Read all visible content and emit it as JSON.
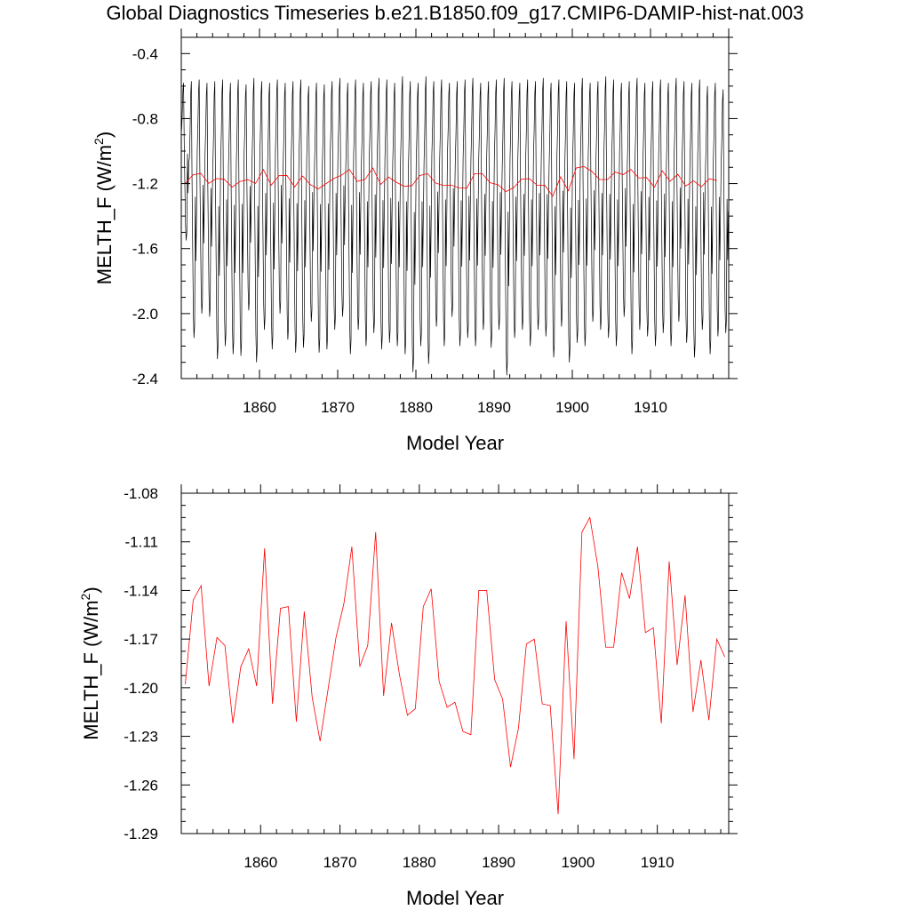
{
  "title": "Global Diagnostics Timeseries b.e21.B1850.f09_g17.CMIP6-DAMIP-hist-nat.003",
  "colors": {
    "monthly": "#000000",
    "annual": "#ff0000",
    "frame": "#000000"
  },
  "chart_data": [
    {
      "type": "line",
      "xlabel": "Model Year",
      "ylabel": "MELTH_F (W/m²)",
      "ylabel_main": "MELTH_F (W/m",
      "ylabel_sup": "2",
      "ylabel_end": ")",
      "xlim": [
        1850,
        1920
      ],
      "ylim": [
        -2.4,
        -0.3
      ],
      "xticks": [
        1860,
        1870,
        1880,
        1890,
        1900,
        1910
      ],
      "xtick_labels": [
        "1860",
        "1870",
        "1880",
        "1890",
        "1900",
        "1910"
      ],
      "yticks": [
        -2.4,
        -2.0,
        -1.6,
        -1.2,
        -0.8,
        -0.4
      ],
      "ytick_labels": [
        "-2.4",
        "-2.0",
        "-1.6",
        "-1.2",
        "-0.8",
        "-0.4"
      ],
      "grid": false,
      "series": [
        {
          "role": "monthly",
          "color": "#000000",
          "x_start": 1850.04,
          "x_step": 0.08333,
          "min_per_year": [
            -1.55,
            -2.15,
            -2.0,
            -2.02,
            -2.28,
            -2.2,
            -2.25,
            -2.26,
            -1.98,
            -2.3,
            -2.1,
            -2.22,
            -2.0,
            -2.16,
            -2.24,
            -2.21,
            -2.05,
            -2.24,
            -2.22,
            -2.1,
            -2.02,
            -2.25,
            -2.1,
            -2.2,
            -2.12,
            -2.22,
            -2.18,
            -2.2,
            -2.25,
            -2.36,
            -2.2,
            -2.31,
            -2.08,
            -2.2,
            -2.02,
            -2.2,
            -2.15,
            -2.2,
            -2.1,
            -2.21,
            -2.1,
            -2.38,
            -2.15,
            -2.1,
            -2.2,
            -2.1,
            -2.14,
            -2.27,
            -2.08,
            -2.3,
            -2.18,
            -2.2,
            -2.05,
            -2.1,
            -2.15,
            -2.2,
            -2.02,
            -2.25,
            -2.1,
            -2.14,
            -2.2,
            -2.12,
            -2.2,
            -2.05,
            -2.18,
            -2.27,
            -2.1,
            -2.25,
            -2.14,
            -2.12
          ],
          "max_per_year": [
            -0.58,
            -0.57,
            -0.56,
            -0.58,
            -0.57,
            -0.56,
            -0.58,
            -0.56,
            -0.59,
            -0.55,
            -0.57,
            -0.58,
            -0.56,
            -0.58,
            -0.57,
            -0.56,
            -0.6,
            -0.58,
            -0.59,
            -0.57,
            -0.55,
            -0.58,
            -0.56,
            -0.58,
            -0.57,
            -0.55,
            -0.56,
            -0.58,
            -0.54,
            -0.57,
            -0.58,
            -0.54,
            -0.57,
            -0.56,
            -0.58,
            -0.57,
            -0.56,
            -0.55,
            -0.58,
            -0.57,
            -0.56,
            -0.55,
            -0.57,
            -0.58,
            -0.56,
            -0.57,
            -0.55,
            -0.58,
            -0.56,
            -0.57,
            -0.58,
            -0.55,
            -0.58,
            -0.57,
            -0.54,
            -0.56,
            -0.58,
            -0.57,
            -0.55,
            -0.58,
            -0.57,
            -0.56,
            -0.58,
            -0.55,
            -0.57,
            -0.58,
            -0.56,
            -0.6,
            -0.58,
            -0.62
          ]
        },
        {
          "role": "annual",
          "color": "#ff0000",
          "x_start": 1850.5,
          "x_step": 1,
          "values": [
            -1.198,
            -1.146,
            -1.137,
            -1.199,
            -1.169,
            -1.174,
            -1.222,
            -1.187,
            -1.176,
            -1.199,
            -1.114,
            -1.21,
            -1.151,
            -1.15,
            -1.221,
            -1.153,
            -1.206,
            -1.233,
            -1.201,
            -1.169,
            -1.148,
            -1.113,
            -1.187,
            -1.174,
            -1.104,
            -1.205,
            -1.16,
            -1.192,
            -1.217,
            -1.213,
            -1.15,
            -1.139,
            -1.196,
            -1.212,
            -1.209,
            -1.227,
            -1.229,
            -1.14,
            -1.14,
            -1.195,
            -1.207,
            -1.249,
            -1.225,
            -1.173,
            -1.17,
            -1.21,
            -1.211,
            -1.278,
            -1.159,
            -1.244,
            -1.104,
            -1.095,
            -1.125,
            -1.175,
            -1.175,
            -1.129,
            -1.145,
            -1.113,
            -1.166,
            -1.163,
            -1.222,
            -1.122,
            -1.186,
            -1.143,
            -1.215,
            -1.183,
            -1.22,
            -1.17,
            -1.181
          ]
        }
      ]
    },
    {
      "type": "line",
      "xlabel": "Model Year",
      "ylabel": "MELTH_F (W/m²)",
      "ylabel_main": "MELTH_F (W/m",
      "ylabel_sup": "2",
      "ylabel_end": ")",
      "xlim": [
        1850,
        1919
      ],
      "ylim": [
        -1.29,
        -1.08
      ],
      "xticks": [
        1860,
        1870,
        1880,
        1890,
        1900,
        1910
      ],
      "xtick_labels": [
        "1860",
        "1870",
        "1880",
        "1890",
        "1900",
        "1910"
      ],
      "yticks": [
        -1.29,
        -1.26,
        -1.23,
        -1.2,
        -1.17,
        -1.14,
        -1.11,
        -1.08
      ],
      "ytick_labels": [
        "-1.29",
        "-1.26",
        "-1.23",
        "-1.20",
        "-1.17",
        "-1.14",
        "-1.11",
        "-1.08"
      ],
      "grid": false,
      "series": [
        {
          "role": "annual",
          "color": "#ff0000",
          "x_start": 1850.5,
          "x_step": 1,
          "values": [
            -1.198,
            -1.146,
            -1.137,
            -1.199,
            -1.169,
            -1.174,
            -1.222,
            -1.187,
            -1.176,
            -1.199,
            -1.114,
            -1.21,
            -1.151,
            -1.15,
            -1.221,
            -1.153,
            -1.206,
            -1.233,
            -1.201,
            -1.169,
            -1.148,
            -1.113,
            -1.187,
            -1.174,
            -1.104,
            -1.205,
            -1.16,
            -1.192,
            -1.217,
            -1.213,
            -1.15,
            -1.139,
            -1.196,
            -1.212,
            -1.209,
            -1.227,
            -1.229,
            -1.14,
            -1.14,
            -1.195,
            -1.207,
            -1.249,
            -1.225,
            -1.173,
            -1.17,
            -1.21,
            -1.211,
            -1.278,
            -1.159,
            -1.244,
            -1.104,
            -1.095,
            -1.125,
            -1.175,
            -1.175,
            -1.129,
            -1.145,
            -1.113,
            -1.166,
            -1.163,
            -1.222,
            -1.122,
            -1.186,
            -1.143,
            -1.215,
            -1.183,
            -1.22,
            -1.17,
            -1.181
          ]
        }
      ]
    }
  ]
}
